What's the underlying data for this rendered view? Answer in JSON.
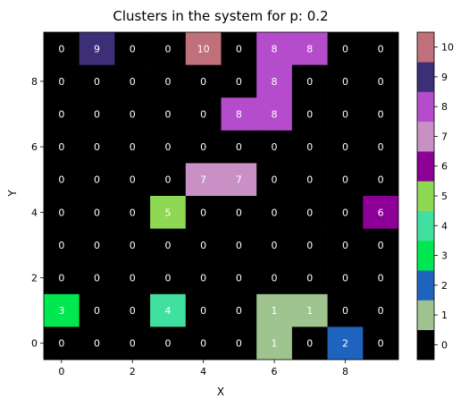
{
  "chart_data": {
    "type": "heatmap",
    "title": "Clusters in the system for p: 0.2",
    "xlabel": "X",
    "ylabel": "Y",
    "x_ticks": [
      0,
      2,
      4,
      6,
      8
    ],
    "y_ticks": [
      0,
      2,
      4,
      6,
      8
    ],
    "xlim": [
      -0.5,
      9.5
    ],
    "ylim": [
      -0.5,
      9.5
    ],
    "colorbar_ticks": [
      0,
      1,
      2,
      3,
      4,
      5,
      6,
      7,
      8,
      9,
      10
    ],
    "colors": [
      "#000000",
      "#9fc490",
      "#1e64be",
      "#00e850",
      "#40e0a0",
      "#8ed854",
      "#8c0096",
      "#c890c4",
      "#b44ccc",
      "#3c2f78",
      "#c0707a"
    ],
    "rows_top_to_bottom": [
      {
        "y": 9,
        "values": [
          0,
          9,
          0,
          0,
          10,
          0,
          8,
          8,
          0,
          0
        ]
      },
      {
        "y": 8,
        "values": [
          0,
          0,
          0,
          0,
          0,
          0,
          8,
          0,
          0,
          0
        ]
      },
      {
        "y": 7,
        "values": [
          0,
          0,
          0,
          0,
          0,
          8,
          8,
          0,
          0,
          0
        ]
      },
      {
        "y": 6,
        "values": [
          0,
          0,
          0,
          0,
          0,
          0,
          0,
          0,
          0,
          0
        ]
      },
      {
        "y": 5,
        "values": [
          0,
          0,
          0,
          0,
          7,
          7,
          0,
          0,
          0,
          0
        ]
      },
      {
        "y": 4,
        "values": [
          0,
          0,
          0,
          5,
          0,
          0,
          0,
          0,
          0,
          6
        ]
      },
      {
        "y": 3,
        "values": [
          0,
          0,
          0,
          0,
          0,
          0,
          0,
          0,
          0,
          0
        ]
      },
      {
        "y": 2,
        "values": [
          0,
          0,
          0,
          0,
          0,
          0,
          0,
          0,
          0,
          0
        ]
      },
      {
        "y": 1,
        "values": [
          3,
          0,
          0,
          4,
          0,
          0,
          1,
          1,
          0,
          0
        ]
      },
      {
        "y": 0,
        "values": [
          0,
          0,
          0,
          0,
          0,
          0,
          1,
          0,
          2,
          0
        ]
      }
    ]
  }
}
